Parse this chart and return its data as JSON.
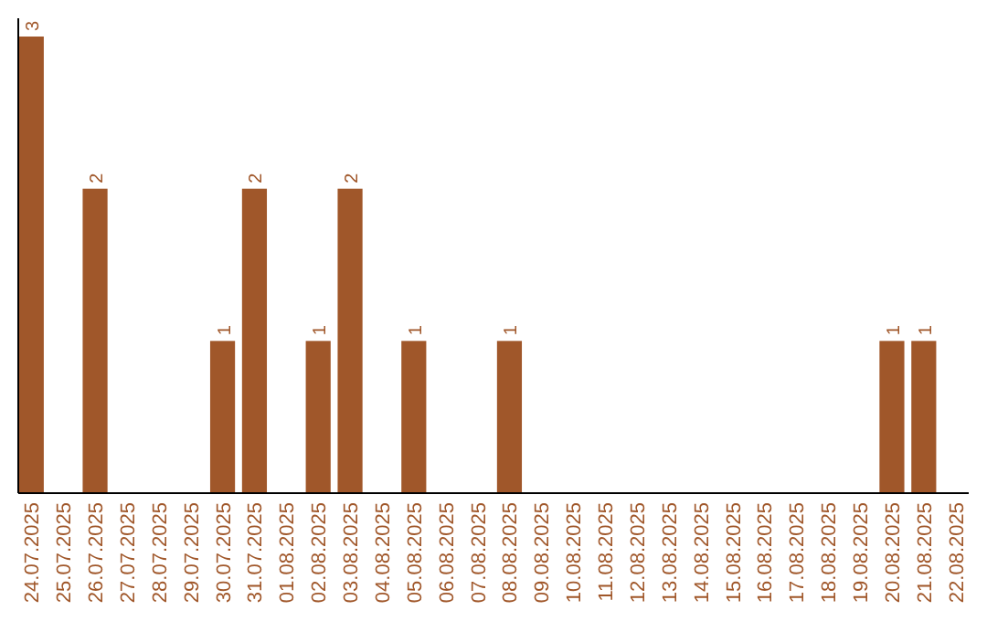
{
  "chart_data": {
    "type": "bar",
    "categories": [
      "24.07.2025",
      "25.07.2025",
      "26.07.2025",
      "27.07.2025",
      "28.07.2025",
      "29.07.2025",
      "30.07.2025",
      "31.07.2025",
      "01.08.2025",
      "02.08.2025",
      "03.08.2025",
      "04.08.2025",
      "05.08.2025",
      "06.08.2025",
      "07.08.2025",
      "08.08.2025",
      "09.08.2025",
      "10.08.2025",
      "11.08.2025",
      "12.08.2025",
      "13.08.2025",
      "14.08.2025",
      "15.08.2025",
      "16.08.2025",
      "17.08.2025",
      "18.08.2025",
      "19.08.2025",
      "20.08.2025",
      "21.08.2025",
      "22.08.2025"
    ],
    "values": [
      3,
      0,
      2,
      0,
      0,
      0,
      1,
      2,
      0,
      1,
      2,
      0,
      1,
      0,
      0,
      1,
      0,
      0,
      0,
      0,
      0,
      0,
      0,
      0,
      0,
      0,
      0,
      1,
      1,
      0
    ],
    "value_labels": [
      "3",
      null,
      "2",
      null,
      null,
      null,
      "1",
      "2",
      null,
      "1",
      "2",
      null,
      "1",
      null,
      null,
      "1",
      null,
      null,
      null,
      null,
      null,
      null,
      null,
      null,
      null,
      null,
      null,
      "1",
      "1",
      null
    ],
    "color": "#a0572a",
    "tick_labels": "x"
  }
}
